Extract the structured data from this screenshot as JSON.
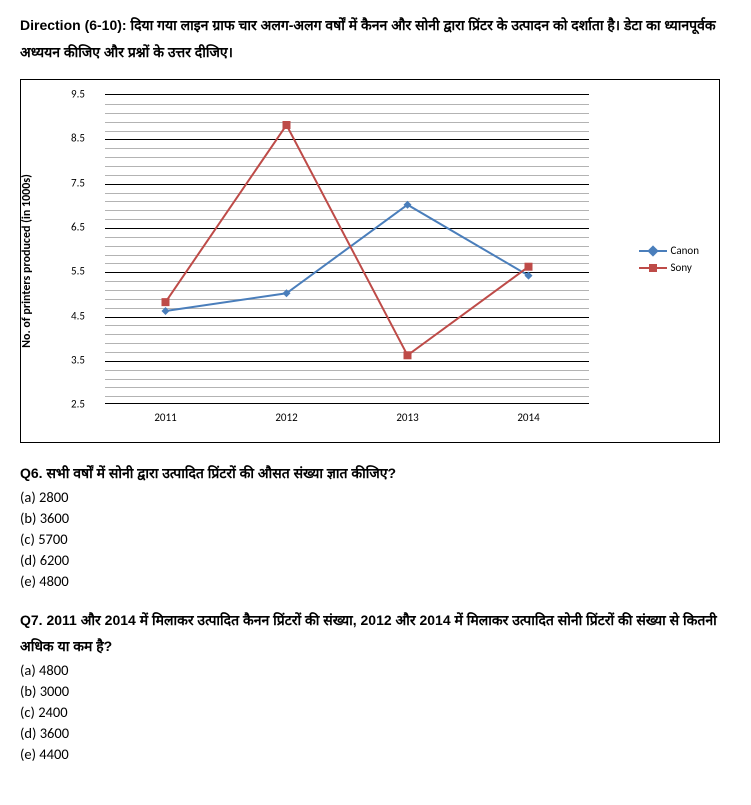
{
  "direction_text": "Direction (6-10): दिया गया लाइन ग्राफ चार अलग-अलग वर्षों में कैनन और सोनी द्वारा प्रिंटर के उत्पादन को दर्शाता है। डेटा का ध्यानपूर्वक अध्ययन कीजिए और प्रश्नों के उत्तर दीजिए।",
  "chart": {
    "type": "line",
    "ylabel": "No. of printers produced (in 1000s)",
    "ylim": [
      2.5,
      9.5
    ],
    "yticks": [
      2.5,
      3.5,
      4.5,
      5.5,
      6.5,
      7.5,
      8.5,
      9.5
    ],
    "categories": [
      "2011",
      "2012",
      "2013",
      "2014"
    ],
    "minor_grid_count": 5,
    "grid_color": "#808080",
    "major_grid_color": "#000000",
    "background_color": "#ffffff",
    "tick_fontsize": 11,
    "label_fontsize": 12,
    "legend_fontsize": 11,
    "series": [
      {
        "name": "Canon",
        "color": "#4a7ebb",
        "marker": "diamond",
        "marker_size": 8,
        "line_width": 2,
        "values": [
          4.6,
          5.0,
          7.0,
          5.4
        ]
      },
      {
        "name": "Sony",
        "color": "#be4b48",
        "marker": "square",
        "marker_size": 8,
        "line_width": 2,
        "values": [
          4.8,
          8.8,
          3.6,
          5.6
        ]
      }
    ]
  },
  "questions": [
    {
      "title": "Q6. सभी वर्षों में सोनी द्वारा उत्पादित प्रिंटरों की औसत संख्या ज्ञात कीजिए?",
      "options": [
        "(a) 2800",
        "(b) 3600",
        "(c) 5700",
        "(d) 6200",
        "(e) 4800"
      ]
    },
    {
      "title": "Q7. 2011 और 2014 में मिलाकर उत्पादित कैनन प्रिंटरों की संख्या, 2012 और 2014 में मिलाकर उत्पादित सोनी प्रिंटरों की संख्या से कितनी अधिक या कम है?",
      "options": [
        "(a) 4800",
        "(b) 3000",
        "(c) 2400",
        "(d) 3600",
        "(e) 4400"
      ]
    }
  ]
}
